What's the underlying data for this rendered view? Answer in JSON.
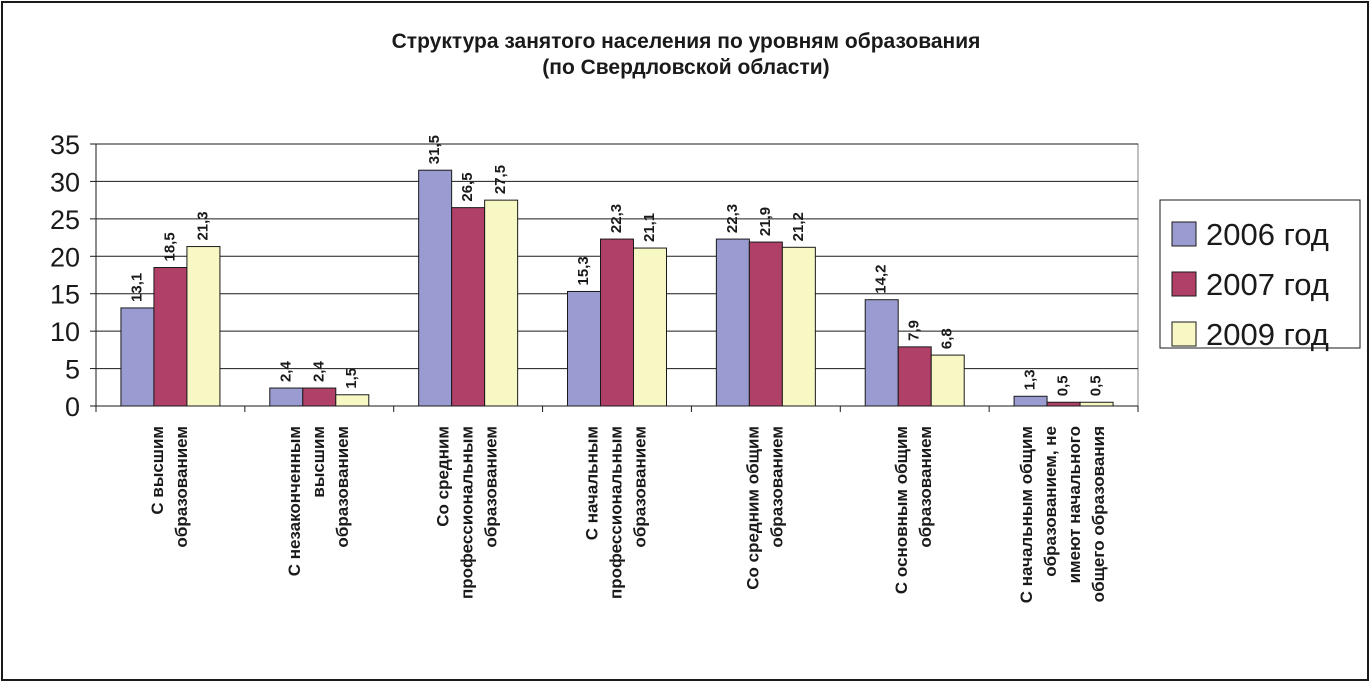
{
  "chart_data": {
    "type": "bar",
    "title": [
      "Структура занятого населения по уровням образования",
      "(по Свердловской области)"
    ],
    "xlabel": "",
    "ylabel": "",
    "ylim": [
      0,
      35
    ],
    "yticks": [
      0,
      5,
      10,
      15,
      20,
      25,
      30,
      35
    ],
    "grid": true,
    "legend_position": "right",
    "categories": [
      [
        "С высшим",
        "образованием"
      ],
      [
        "С незаконченным",
        "высшим",
        "образованием"
      ],
      [
        "Со средним",
        "профессиональным",
        "образованием"
      ],
      [
        "С начальным",
        "профессиональным",
        "образованием"
      ],
      [
        "Со средним общим",
        "образованием"
      ],
      [
        "С основным общим",
        "образованием"
      ],
      [
        "С начальным общим",
        "образованием, не",
        "имеют начального",
        "общего образования"
      ]
    ],
    "series": [
      {
        "name": "2006 год",
        "color": "#9a9bd0",
        "values": [
          13.1,
          2.4,
          31.5,
          15.3,
          22.3,
          14.2,
          1.3
        ],
        "labels": [
          "13,1",
          "2,4",
          "31,5",
          "15,3",
          "22,3",
          "14,2",
          "1,3"
        ]
      },
      {
        "name": "2007 год",
        "color": "#b04068",
        "values": [
          18.5,
          2.4,
          26.5,
          22.3,
          21.9,
          7.9,
          0.5
        ],
        "labels": [
          "18,5",
          "2,4",
          "26,5",
          "22,3",
          "21,9",
          "7,9",
          "0,5"
        ]
      },
      {
        "name": "2009 год",
        "color": "#f8f8c4",
        "values": [
          21.3,
          1.5,
          27.5,
          21.1,
          21.2,
          6.8,
          0.5
        ],
        "labels": [
          "21,3",
          "1,5",
          "27,5",
          "21,1",
          "21,2",
          "6,8",
          "0,5"
        ]
      }
    ]
  }
}
